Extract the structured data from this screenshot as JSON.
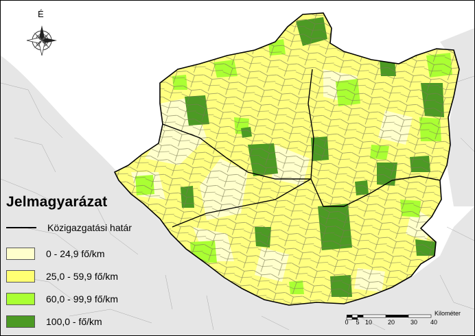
{
  "north_arrow": {
    "label": "É",
    "icon": "compass-rose-icon"
  },
  "legend": {
    "title": "Jelmagyarázat",
    "boundary_label": "Közigazgatási határ",
    "classes": [
      {
        "label": "0 - 24,9 fő/km",
        "color": "#FFFFCC"
      },
      {
        "label": "25,0 - 59,9 fő/km",
        "color": "#FFFF73"
      },
      {
        "label": "60,0 - 99,9 fő/km",
        "color": "#AAFF33"
      },
      {
        "label": "100,0 - fő/km",
        "color": "#4C9A24"
      }
    ]
  },
  "scale_bar": {
    "title": "Kilométer",
    "ticks": [
      "0",
      "5",
      "10",
      "20",
      "30",
      "40"
    ]
  },
  "colors": {
    "background_land": "#E6E6E6",
    "outside_region": "#FFFFFF",
    "boundary": "#000000",
    "municipal_border": "#888888"
  }
}
